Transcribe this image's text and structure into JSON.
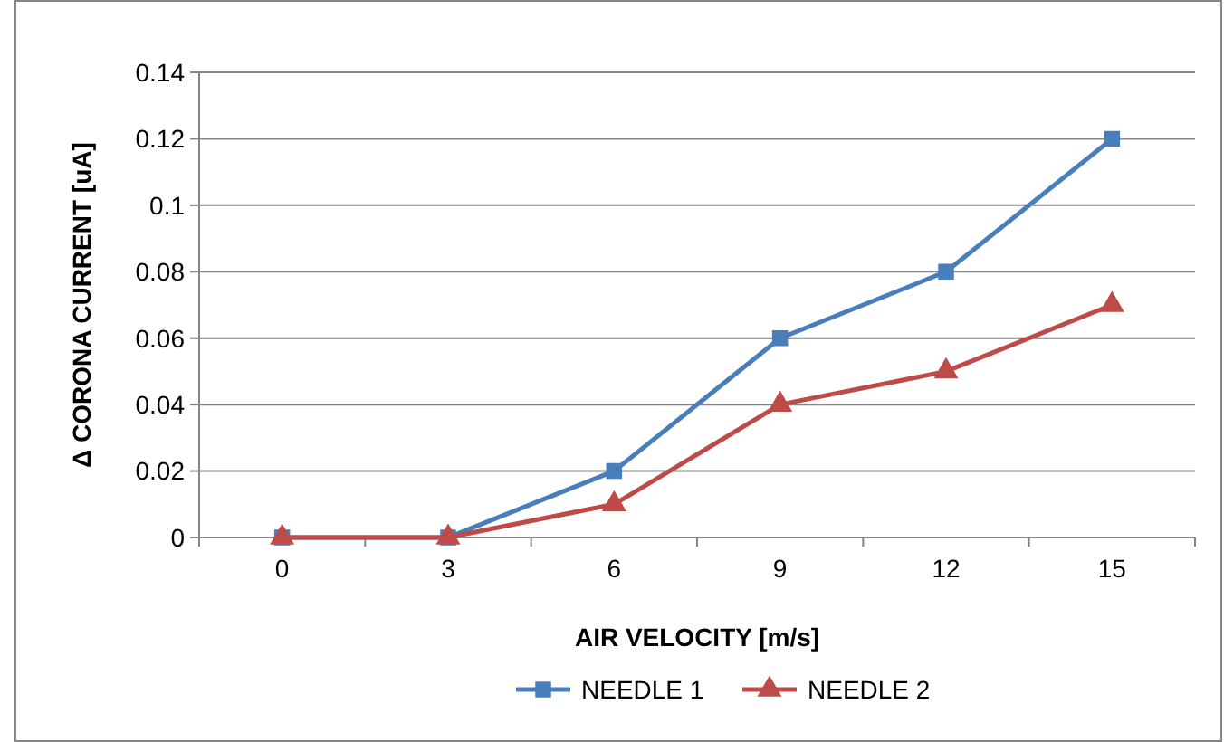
{
  "chart_data": {
    "type": "line",
    "xlabel": "AIR VELOCITY [m/s]",
    "ylabel": "Δ CORONA CURRENT [uA]",
    "categories": [
      "0",
      "3",
      "6",
      "9",
      "12",
      "15"
    ],
    "series": [
      {
        "name": "NEEDLE 1",
        "color": "#4a7ebb",
        "marker": "square",
        "values": [
          0,
          0,
          0.02,
          0.06,
          0.08,
          0.12
        ]
      },
      {
        "name": "NEEDLE 2",
        "color": "#be4b48",
        "marker": "triangle",
        "values": [
          0,
          0,
          0.01,
          0.04,
          0.05,
          0.07
        ]
      }
    ],
    "ylim": [
      0,
      0.14
    ],
    "yticks": [
      0,
      0.02,
      0.04,
      0.06,
      0.08,
      0.1,
      0.12,
      0.14
    ],
    "grid": "y",
    "legend": "bottom",
    "line_style": "solid"
  }
}
